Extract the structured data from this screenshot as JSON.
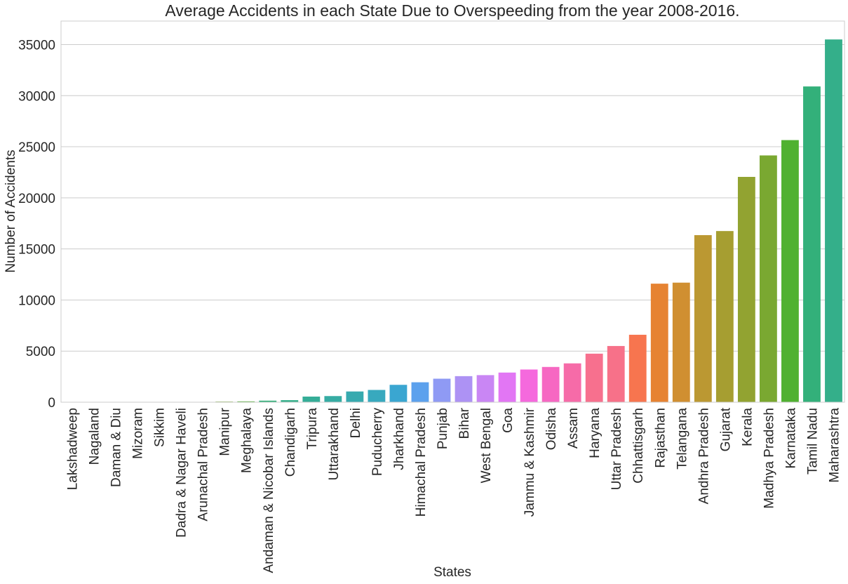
{
  "chart_data": {
    "type": "bar",
    "title": "Average Accidents in each State Due to Overspeeding from the year 2008-2016.",
    "xlabel": "States",
    "ylabel": "Number of Accidents",
    "ylim": [
      0,
      37300
    ],
    "yticks": [
      0,
      5000,
      10000,
      15000,
      20000,
      25000,
      30000,
      35000
    ],
    "grid": true,
    "categories": [
      "Lakshadweep",
      "Nagaland",
      "Daman & Diu",
      "Mizoram",
      "Sikkim",
      "Dadra & Nagar Haveli",
      "Arunachal Pradesh",
      "Manipur",
      "Meghalaya",
      "Andaman & Nicobar Islands",
      "Chandigarh",
      "Tripura",
      "Uttarakhand",
      "Delhi",
      "Puducherry",
      "Jharkhand",
      "Himachal Pradesh",
      "Punjab",
      "Bihar",
      "West Bengal",
      "Goa",
      "Jammu & Kashmir",
      "Odisha",
      "Assam",
      "Haryana",
      "Uttar Pradesh",
      "Chhattisgarh",
      "Rajasthan",
      "Telangana",
      "Andhra Pradesh",
      "Gujarat",
      "Kerala",
      "Madhya Pradesh",
      "Karnataka",
      "Tamil Nadu",
      "Maharashtra"
    ],
    "values": [
      0,
      0,
      5,
      8,
      10,
      15,
      20,
      60,
      80,
      150,
      200,
      550,
      600,
      1050,
      1200,
      1700,
      1950,
      2300,
      2550,
      2650,
      2900,
      3200,
      3450,
      3800,
      4750,
      5500,
      6600,
      11600,
      11700,
      16350,
      16750,
      22050,
      24150,
      25650,
      30900,
      35500
    ],
    "colors": [
      "#f77189",
      "#f7754f",
      "#e68332",
      "#d08f31",
      "#bb9832",
      "#a69e31",
      "#92a331",
      "#7aa831",
      "#50b131",
      "#33b07a",
      "#34af8a",
      "#35ad97",
      "#36aca3",
      "#37aaaf",
      "#38a9be",
      "#3aa6d1",
      "#5ca1ed",
      "#8f9af4",
      "#ad92f4",
      "#c986f4",
      "#e276f4",
      "#f569dd",
      "#f668c2",
      "#f66ba8",
      "#f7708e",
      "#f77189",
      "#f7754f",
      "#e68332",
      "#d08f31",
      "#bb9832",
      "#a69e31",
      "#92a331",
      "#7aa831",
      "#50b131",
      "#33b07a",
      "#34af8a"
    ]
  }
}
